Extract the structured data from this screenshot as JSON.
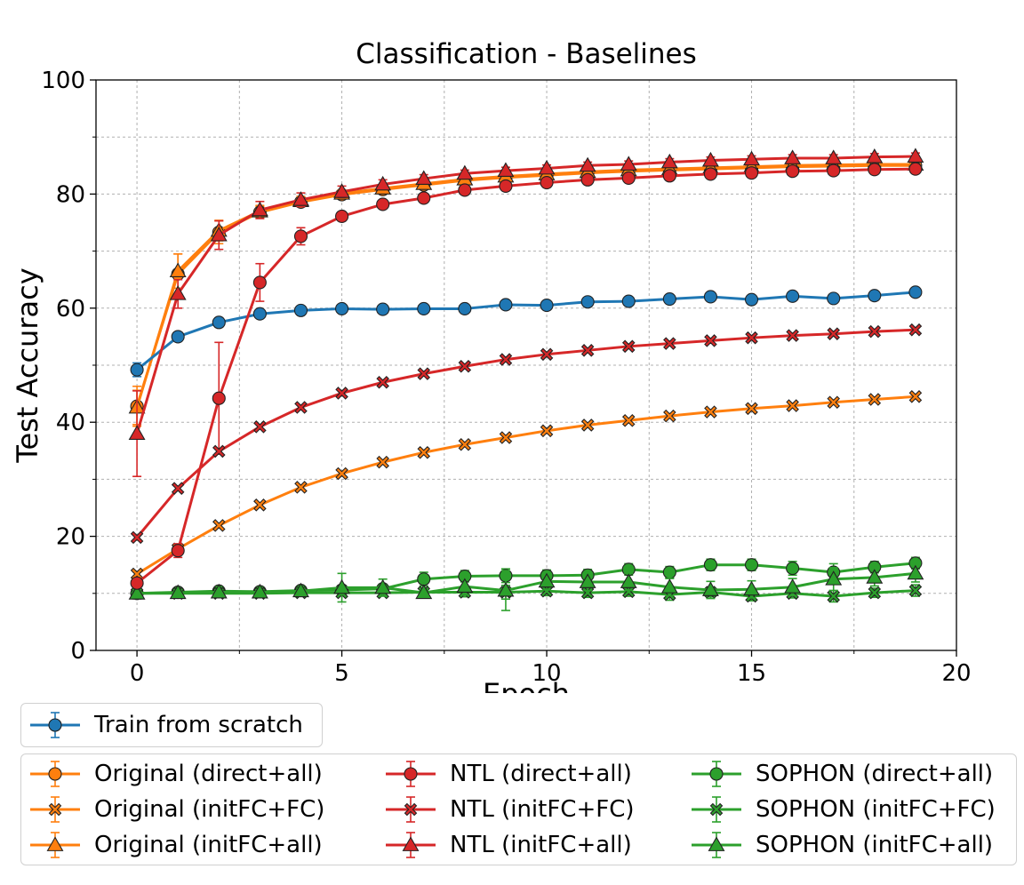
{
  "chart_data": {
    "type": "line",
    "title": "Classification - Baselines",
    "xlabel": "Epoch",
    "ylabel": "Test Accuracy",
    "xlim": [
      -1,
      20
    ],
    "ylim": [
      0,
      100
    ],
    "xticks": [
      0,
      5,
      10,
      15,
      20
    ],
    "yticks": [
      0,
      20,
      40,
      60,
      80,
      100
    ],
    "grid": true,
    "legend_placement": "below",
    "series": [
      {
        "name": "Train from scratch",
        "color": "#1f77b4",
        "marker": "circle",
        "x": [
          0,
          1,
          2,
          3,
          4,
          5,
          6,
          7,
          8,
          9,
          10,
          11,
          12,
          13,
          14,
          15,
          16,
          17,
          18,
          19
        ],
        "y": [
          49.2,
          55.0,
          57.5,
          59.0,
          59.6,
          59.9,
          59.8,
          59.9,
          59.9,
          60.6,
          60.5,
          61.1,
          61.2,
          61.6,
          62.0,
          61.5,
          62.1,
          61.7,
          62.2,
          62.8
        ],
        "err": [
          1.2,
          0.6,
          0.8,
          0.5,
          0.4,
          0.3,
          0.3,
          0.3,
          0.3,
          0.3,
          0.3,
          0.3,
          0.3,
          0.3,
          0.3,
          0.3,
          0.3,
          0.3,
          0.3,
          0.3
        ]
      },
      {
        "name": "Original (direct+all)",
        "color": "#ff7f0e",
        "marker": "circle",
        "x": [
          0,
          1,
          2,
          3,
          4,
          5,
          6,
          7,
          8,
          9,
          10,
          11,
          12,
          13,
          14,
          15,
          16,
          17,
          18,
          19
        ],
        "y": [
          42.8,
          66.0,
          73.3,
          76.8,
          78.6,
          79.9,
          80.8,
          81.6,
          82.4,
          82.9,
          83.3,
          83.7,
          84.0,
          84.2,
          84.4,
          84.6,
          84.8,
          84.9,
          85.0,
          85.0
        ],
        "err": [
          3.5,
          3.5,
          2.0,
          1.0,
          0.8,
          0.6,
          0.5,
          0.5,
          0.5,
          0.5,
          0.5,
          0.5,
          0.5,
          0.5,
          0.5,
          0.5,
          0.5,
          0.5,
          0.5,
          0.5
        ]
      },
      {
        "name": "Original (initFC+FC)",
        "color": "#ff7f0e",
        "marker": "x",
        "x": [
          0,
          1,
          2,
          3,
          4,
          5,
          6,
          7,
          8,
          9,
          10,
          11,
          12,
          13,
          14,
          15,
          16,
          17,
          18,
          19
        ],
        "y": [
          13.4,
          17.8,
          21.9,
          25.5,
          28.6,
          31.0,
          33.0,
          34.7,
          36.1,
          37.3,
          38.5,
          39.5,
          40.3,
          41.1,
          41.8,
          42.4,
          42.9,
          43.5,
          44.0,
          44.5
        ],
        "err": [
          0.4,
          0.4,
          0.4,
          0.4,
          0.4,
          0.4,
          0.4,
          0.4,
          0.4,
          0.4,
          0.4,
          0.4,
          0.4,
          0.4,
          0.4,
          0.4,
          0.4,
          0.4,
          0.4,
          0.4
        ]
      },
      {
        "name": "Original (initFC+all)",
        "color": "#ff7f0e",
        "marker": "triangle",
        "x": [
          0,
          1,
          2,
          3,
          4,
          5,
          6,
          7,
          8,
          9,
          10,
          11,
          12,
          13,
          14,
          15,
          16,
          17,
          18,
          19
        ],
        "y": [
          42.6,
          66.5,
          73.6,
          77.0,
          78.8,
          80.1,
          81.0,
          81.8,
          82.6,
          83.1,
          83.5,
          83.9,
          84.2,
          84.4,
          84.6,
          84.8,
          85.0,
          85.1,
          85.2,
          85.2
        ],
        "err": [
          3.0,
          3.0,
          1.8,
          1.0,
          0.8,
          0.6,
          0.5,
          0.5,
          0.5,
          0.5,
          0.5,
          0.5,
          0.5,
          0.5,
          0.5,
          0.5,
          0.5,
          0.5,
          0.5,
          0.5
        ]
      },
      {
        "name": "NTL (direct+all)",
        "color": "#d62728",
        "marker": "circle",
        "x": [
          0,
          1,
          2,
          3,
          4,
          5,
          6,
          7,
          8,
          9,
          10,
          11,
          12,
          13,
          14,
          15,
          16,
          17,
          18,
          19
        ],
        "y": [
          11.8,
          17.5,
          44.2,
          64.5,
          72.6,
          76.1,
          78.2,
          79.3,
          80.7,
          81.4,
          82.0,
          82.5,
          82.8,
          83.2,
          83.5,
          83.7,
          84.0,
          84.1,
          84.3,
          84.4
        ],
        "err": [
          0.8,
          1.2,
          9.8,
          3.3,
          1.5,
          0.8,
          0.6,
          0.5,
          0.5,
          0.5,
          0.5,
          0.5,
          0.5,
          0.5,
          0.5,
          0.5,
          0.5,
          0.5,
          0.5,
          0.5
        ]
      },
      {
        "name": "NTL (initFC+FC)",
        "color": "#d62728",
        "marker": "x",
        "x": [
          0,
          1,
          2,
          3,
          4,
          5,
          6,
          7,
          8,
          9,
          10,
          11,
          12,
          13,
          14,
          15,
          16,
          17,
          18,
          19
        ],
        "y": [
          19.8,
          28.4,
          34.9,
          39.2,
          42.6,
          45.1,
          47.0,
          48.5,
          49.8,
          51.0,
          51.9,
          52.6,
          53.3,
          53.8,
          54.3,
          54.8,
          55.2,
          55.5,
          55.9,
          56.2
        ],
        "err": [
          0.4,
          0.4,
          0.4,
          0.4,
          0.4,
          0.4,
          0.4,
          0.4,
          0.4,
          0.4,
          0.4,
          0.4,
          0.4,
          0.4,
          0.4,
          0.4,
          0.4,
          0.4,
          0.4,
          0.4
        ]
      },
      {
        "name": "NTL (initFC+all)",
        "color": "#d62728",
        "marker": "triangle",
        "x": [
          0,
          1,
          2,
          3,
          4,
          5,
          6,
          7,
          8,
          9,
          10,
          11,
          12,
          13,
          14,
          15,
          16,
          17,
          18,
          19
        ],
        "y": [
          38.0,
          62.5,
          72.8,
          77.2,
          79.0,
          80.4,
          81.7,
          82.7,
          83.6,
          84.1,
          84.5,
          85.0,
          85.2,
          85.6,
          85.9,
          86.1,
          86.3,
          86.3,
          86.5,
          86.6
        ],
        "err": [
          7.5,
          2.5,
          2.5,
          1.5,
          1.2,
          1.0,
          0.8,
          0.7,
          0.6,
          0.6,
          0.6,
          0.6,
          0.6,
          0.6,
          0.6,
          0.6,
          0.6,
          0.6,
          0.6,
          0.6
        ]
      },
      {
        "name": "SOPHON (direct+all)",
        "color": "#2ca02c",
        "marker": "circle",
        "x": [
          0,
          1,
          2,
          3,
          4,
          5,
          6,
          7,
          8,
          9,
          10,
          11,
          12,
          13,
          14,
          15,
          16,
          17,
          18,
          19
        ],
        "y": [
          10.0,
          10.2,
          10.4,
          10.3,
          10.5,
          10.6,
          10.8,
          12.5,
          13.0,
          13.1,
          13.1,
          13.2,
          14.2,
          13.7,
          15.0,
          15.0,
          14.4,
          13.7,
          14.6,
          15.3
        ],
        "err": [
          0.3,
          0.4,
          0.4,
          0.5,
          0.6,
          0.8,
          0.8,
          1.2,
          1.0,
          1.2,
          1.0,
          1.0,
          1.0,
          1.0,
          1.0,
          1.0,
          1.2,
          1.5,
          1.0,
          1.0
        ]
      },
      {
        "name": "SOPHON (initFC+FC)",
        "color": "#2ca02c",
        "marker": "x",
        "x": [
          0,
          1,
          2,
          3,
          4,
          5,
          6,
          7,
          8,
          9,
          10,
          11,
          12,
          13,
          14,
          15,
          16,
          17,
          18,
          19
        ],
        "y": [
          10.0,
          10.0,
          10.0,
          10.0,
          10.1,
          10.1,
          10.1,
          10.2,
          10.2,
          10.2,
          10.4,
          10.1,
          10.3,
          9.8,
          10.2,
          9.5,
          10.0,
          9.5,
          10.1,
          10.5
        ],
        "err": [
          0.3,
          0.3,
          0.3,
          0.3,
          0.3,
          0.3,
          0.3,
          0.3,
          0.8,
          1.2,
          0.8,
          0.8,
          0.8,
          1.0,
          0.8,
          0.8,
          0.8,
          1.0,
          0.8,
          1.0
        ]
      },
      {
        "name": "SOPHON (initFC+all)",
        "color": "#2ca02c",
        "marker": "triangle",
        "x": [
          0,
          1,
          2,
          3,
          4,
          5,
          6,
          7,
          8,
          9,
          10,
          11,
          12,
          13,
          14,
          15,
          16,
          17,
          18,
          19
        ],
        "y": [
          10.0,
          10.1,
          10.2,
          10.2,
          10.4,
          11.0,
          11.0,
          10.1,
          11.2,
          10.5,
          12.1,
          12.0,
          12.0,
          11.1,
          10.6,
          10.7,
          11.1,
          12.5,
          12.8,
          13.5
        ],
        "err": [
          0.3,
          0.3,
          0.3,
          0.3,
          0.5,
          2.5,
          1.5,
          0.5,
          1.5,
          3.5,
          1.5,
          1.5,
          1.5,
          1.5,
          1.5,
          1.5,
          1.5,
          2.0,
          1.5,
          1.5
        ]
      }
    ]
  }
}
